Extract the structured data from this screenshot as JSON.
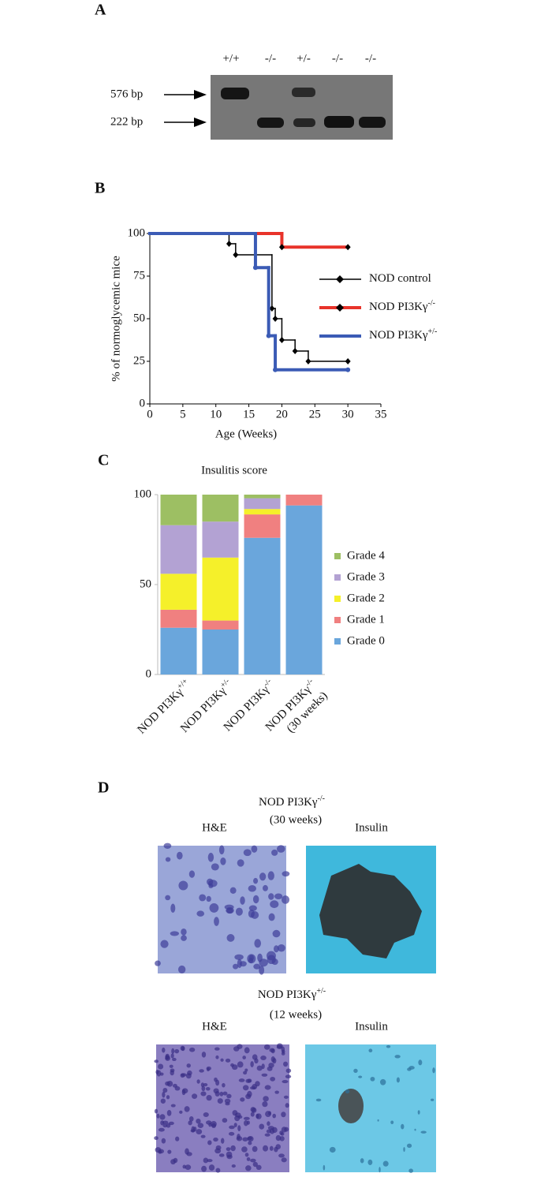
{
  "panel_labels": [
    "A",
    "B",
    "C",
    "D"
  ],
  "gel": {
    "lanes": [
      "+/+",
      "-/-",
      "+/-",
      "-/-",
      "-/-"
    ],
    "band_sizes": [
      "576 bp",
      "222 bp"
    ]
  },
  "chart_data": [
    {
      "type": "line",
      "step": true,
      "y_label": "% of normoglycemic mice",
      "x_label": "Age (Weeks)",
      "xlim": [
        0,
        35
      ],
      "xticks": [
        0,
        5,
        10,
        15,
        20,
        25,
        30,
        35
      ],
      "ylim": [
        0,
        100
      ],
      "yticks": [
        0,
        25,
        50,
        75,
        100
      ],
      "series": [
        {
          "name": "NOD control",
          "color": "#000000",
          "width": 1.5,
          "marker": "diamond",
          "x": [
            0,
            12,
            13,
            18.5,
            19,
            20,
            22,
            24,
            30
          ],
          "values": [
            100,
            94,
            87.5,
            56,
            50,
            37.5,
            31,
            25,
            25
          ]
        },
        {
          "name": "NOD PI3Kγ",
          "name_sup": "-/-",
          "color": "#e8332a",
          "width": 4,
          "marker": "diamond",
          "x": [
            0,
            20,
            30
          ],
          "values": [
            100,
            92,
            92
          ]
        },
        {
          "name": "NOD PI3Kγ",
          "name_sup": "+/-",
          "color": "#3b5bb5",
          "width": 4,
          "marker": "circle",
          "x": [
            0,
            16,
            18,
            19,
            30
          ],
          "values": [
            100,
            80,
            40,
            20,
            20
          ]
        }
      ]
    },
    {
      "type": "bar",
      "stacked": true,
      "title": "Insulitis score",
      "categories": [
        "NOD PI3Kγ",
        "NOD PI3Kγ",
        "NOD PI3Kγ",
        "NOD PI3Kγ"
      ],
      "category_sup": [
        "+/+",
        "+/-",
        "-/-",
        "-/-"
      ],
      "category_note": [
        null,
        null,
        null,
        "(30 weeks)"
      ],
      "ylim": [
        0,
        100
      ],
      "yticks": [
        0,
        50,
        100
      ],
      "series": [
        {
          "name": "Grade 0",
          "color": "#6aa6dc",
          "values": [
            26,
            25,
            76,
            94
          ]
        },
        {
          "name": "Grade 1",
          "color": "#f08080",
          "values": [
            10,
            5,
            13,
            6
          ]
        },
        {
          "name": "Grade 2",
          "color": "#f5f02a",
          "values": [
            20,
            35,
            3,
            0
          ]
        },
        {
          "name": "Grade 3",
          "color": "#b3a2d3",
          "values": [
            27,
            20,
            6,
            0
          ]
        },
        {
          "name": "Grade 4",
          "color": "#9dbf63",
          "values": [
            17,
            15,
            2,
            0
          ]
        }
      ]
    }
  ],
  "histology": [
    {
      "title": "NOD PI3Kγ",
      "title_sup": "-/-",
      "subtitle": "(30 weeks)",
      "stains": [
        "H&E",
        "Insulin"
      ]
    },
    {
      "title": "NOD PI3Kγ",
      "title_sup": "+/-",
      "subtitle": "(12 weeks)",
      "stains": [
        "H&E",
        "Insulin"
      ]
    }
  ]
}
